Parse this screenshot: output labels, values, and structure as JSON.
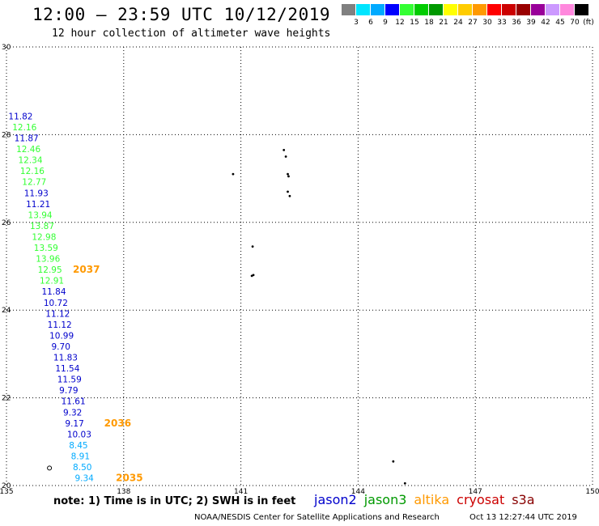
{
  "header": {
    "title": "12:00 – 23:59 UTC 10/12/2019",
    "subtitle": "12 hour collection of altimeter wave heights"
  },
  "colorbar": {
    "colors": [
      "#808080",
      "#00e5ff",
      "#00aaff",
      "#0000ff",
      "#33ff33",
      "#00cc00",
      "#009900",
      "#ffff00",
      "#ffcc00",
      "#ff9900",
      "#ff0000",
      "#cc0000",
      "#990000",
      "#990099",
      "#cc99ff",
      "#ff88dd",
      "#000000"
    ],
    "labels": [
      "3",
      "6",
      "9",
      "12",
      "15",
      "18",
      "21",
      "24",
      "27",
      "30",
      "33",
      "36",
      "39",
      "42",
      "45",
      "70"
    ],
    "unit": "(ft)"
  },
  "chart_data": {
    "type": "scatter",
    "title": "12:00 – 23:59 UTC 10/12/2019",
    "subtitle": "12 hour collection of altimeter wave heights",
    "xlim": [
      135,
      150
    ],
    "ylim": [
      20,
      30
    ],
    "x_ticks": [
      "135",
      "138",
      "141",
      "144",
      "147",
      "150"
    ],
    "y_ticks": [
      "20",
      "22",
      "24",
      "26",
      "28",
      "30"
    ],
    "grid": true,
    "swh_labels": [
      {
        "lon": 135.05,
        "lat": 28.35,
        "value": "11.82",
        "color": "#0000cc"
      },
      {
        "lon": 135.15,
        "lat": 28.1,
        "value": "12.16",
        "color": "#33ff33"
      },
      {
        "lon": 135.2,
        "lat": 27.85,
        "value": "11.87",
        "color": "#0000cc"
      },
      {
        "lon": 135.25,
        "lat": 27.6,
        "value": "12.46",
        "color": "#33ff33"
      },
      {
        "lon": 135.3,
        "lat": 27.35,
        "value": "12.34",
        "color": "#33ff33"
      },
      {
        "lon": 135.35,
        "lat": 27.1,
        "value": "12.16",
        "color": "#33ff33"
      },
      {
        "lon": 135.4,
        "lat": 26.85,
        "value": "12.77",
        "color": "#33ff33"
      },
      {
        "lon": 135.45,
        "lat": 26.6,
        "value": "11.93",
        "color": "#0000cc"
      },
      {
        "lon": 135.5,
        "lat": 26.35,
        "value": "11.21",
        "color": "#0000cc"
      },
      {
        "lon": 135.55,
        "lat": 26.1,
        "value": "13.94",
        "color": "#33ff33"
      },
      {
        "lon": 135.6,
        "lat": 25.85,
        "value": "13.87",
        "color": "#33ff33"
      },
      {
        "lon": 135.65,
        "lat": 25.6,
        "value": "12.98",
        "color": "#33ff33"
      },
      {
        "lon": 135.7,
        "lat": 25.35,
        "value": "13.59",
        "color": "#33ff33"
      },
      {
        "lon": 135.75,
        "lat": 25.1,
        "value": "13.96",
        "color": "#33ff33"
      },
      {
        "lon": 135.8,
        "lat": 24.85,
        "value": "12.95",
        "color": "#33ff33"
      },
      {
        "lon": 135.85,
        "lat": 24.6,
        "value": "12.91",
        "color": "#33ff33"
      },
      {
        "lon": 135.9,
        "lat": 24.35,
        "value": "11.84",
        "color": "#0000cc"
      },
      {
        "lon": 135.95,
        "lat": 24.1,
        "value": "10.72",
        "color": "#0000cc"
      },
      {
        "lon": 136.0,
        "lat": 23.85,
        "value": "11.12",
        "color": "#0000cc"
      },
      {
        "lon": 136.05,
        "lat": 23.6,
        "value": "11.12",
        "color": "#0000cc"
      },
      {
        "lon": 136.1,
        "lat": 23.35,
        "value": "10.99",
        "color": "#0000cc"
      },
      {
        "lon": 136.15,
        "lat": 23.1,
        "value": "9.70",
        "color": "#0000cc"
      },
      {
        "lon": 136.2,
        "lat": 22.85,
        "value": "11.83",
        "color": "#0000cc"
      },
      {
        "lon": 136.25,
        "lat": 22.6,
        "value": "11.54",
        "color": "#0000cc"
      },
      {
        "lon": 136.3,
        "lat": 22.35,
        "value": "11.59",
        "color": "#0000cc"
      },
      {
        "lon": 136.35,
        "lat": 22.1,
        "value": "9.79",
        "color": "#0000cc"
      },
      {
        "lon": 136.4,
        "lat": 21.85,
        "value": "11.61",
        "color": "#0000cc"
      },
      {
        "lon": 136.45,
        "lat": 21.6,
        "value": "9.32",
        "color": "#0000cc"
      },
      {
        "lon": 136.5,
        "lat": 21.35,
        "value": "9.17",
        "color": "#0000cc"
      },
      {
        "lon": 136.55,
        "lat": 21.1,
        "value": "10.03",
        "color": "#0000cc"
      },
      {
        "lon": 136.6,
        "lat": 20.85,
        "value": "8.45",
        "color": "#00aaff"
      },
      {
        "lon": 136.65,
        "lat": 20.6,
        "value": "8.91",
        "color": "#00aaff"
      },
      {
        "lon": 136.7,
        "lat": 20.35,
        "value": "8.50",
        "color": "#00aaff"
      },
      {
        "lon": 136.75,
        "lat": 20.1,
        "value": "9.34",
        "color": "#00aaff"
      }
    ],
    "time_labels": [
      {
        "lon": 136.7,
        "lat": 24.85,
        "value": "2037",
        "color": "#ff9900"
      },
      {
        "lon": 137.5,
        "lat": 21.35,
        "value": "2036",
        "color": "#ff9900"
      },
      {
        "lon": 137.8,
        "lat": 20.1,
        "value": "2035",
        "color": "#ff9900"
      }
    ],
    "coastline_dots": [
      {
        "lon": 142.1,
        "lat": 27.65
      },
      {
        "lon": 142.15,
        "lat": 27.5
      },
      {
        "lon": 142.2,
        "lat": 27.1
      },
      {
        "lon": 142.22,
        "lat": 27.05
      },
      {
        "lon": 142.2,
        "lat": 26.7
      },
      {
        "lon": 142.25,
        "lat": 26.6
      },
      {
        "lon": 140.8,
        "lat": 27.1
      },
      {
        "lon": 141.3,
        "lat": 25.45
      },
      {
        "lon": 141.32,
        "lat": 24.8
      },
      {
        "lon": 141.28,
        "lat": 24.78
      },
      {
        "lon": 144.9,
        "lat": 20.55
      },
      {
        "lon": 145.2,
        "lat": 20.05
      }
    ],
    "ring_marker": {
      "lon": 136.1,
      "lat": 20.4
    }
  },
  "note": "note: 1) Time is in UTC; 2) SWH is in feet",
  "satellites": [
    {
      "name": "jason2",
      "color": "#0000cc"
    },
    {
      "name": "jason3",
      "color": "#009900"
    },
    {
      "name": "altika",
      "color": "#ff9900"
    },
    {
      "name": "cryosat",
      "color": "#cc0000"
    },
    {
      "name": "s3a",
      "color": "#880000"
    }
  ],
  "footer": {
    "credit": "NOAA/NESDIS Center for Satellite Applications and Research",
    "timestamp": "Oct 13 12:27:44 UTC 2019"
  }
}
